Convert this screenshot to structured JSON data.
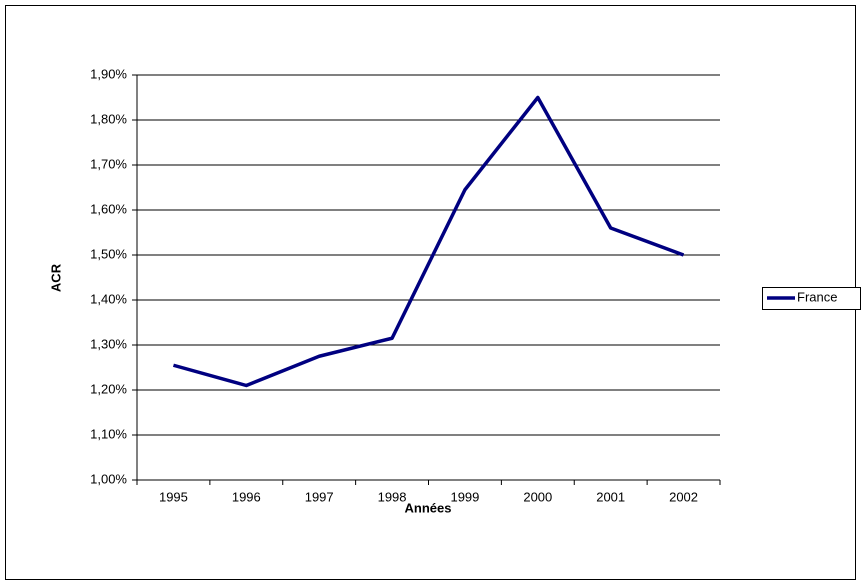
{
  "chart_data": {
    "type": "line",
    "x_label": "Années",
    "y_label": "ACR",
    "categories": [
      "1995",
      "1996",
      "1997",
      "1998",
      "1999",
      "2000",
      "2001",
      "2002"
    ],
    "series": [
      {
        "name": "France",
        "color": "#000080",
        "values": [
          1.255,
          1.21,
          1.275,
          1.315,
          1.645,
          1.85,
          1.56,
          1.5
        ]
      }
    ],
    "ylim": [
      1.0,
      1.9
    ],
    "yticks": [
      {
        "value": 1.0,
        "label": "1,00%"
      },
      {
        "value": 1.1,
        "label": "1,10%"
      },
      {
        "value": 1.2,
        "label": "1,20%"
      },
      {
        "value": 1.3,
        "label": "1,30%"
      },
      {
        "value": 1.4,
        "label": "1,40%"
      },
      {
        "value": 1.5,
        "label": "1,50%"
      },
      {
        "value": 1.6,
        "label": "1,60%"
      },
      {
        "value": 1.7,
        "label": "1,70%"
      },
      {
        "value": 1.8,
        "label": "1,80%"
      },
      {
        "value": 1.9,
        "label": "1,90%"
      }
    ],
    "grid": true,
    "legend": "right"
  }
}
